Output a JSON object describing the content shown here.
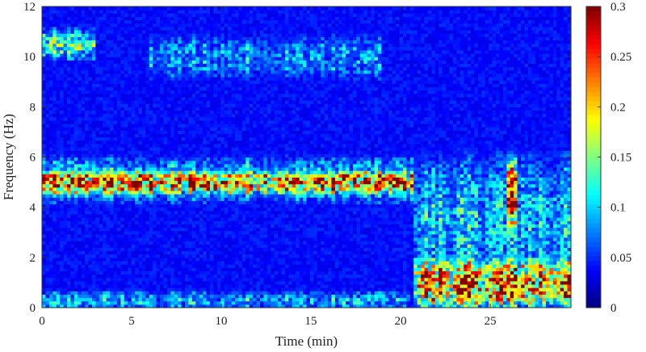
{
  "chart_data": {
    "type": "heatmap",
    "title": "",
    "xlabel": "Time (min)",
    "ylabel": "Frequency (Hz)",
    "xlim": [
      0,
      29.5
    ],
    "ylim": [
      0,
      12
    ],
    "x_ticks": [
      0,
      5,
      10,
      15,
      20,
      25
    ],
    "x_tick_labels": [
      "0",
      "5",
      "10",
      "15",
      "20",
      "25"
    ],
    "y_ticks": [
      0,
      2,
      4,
      6,
      8,
      10,
      12
    ],
    "y_tick_labels": [
      "0",
      "2",
      "4",
      "6",
      "8",
      "10",
      "12"
    ],
    "colorbar": {
      "colormap": "jet",
      "range": [
        0,
        0.3
      ],
      "ticks": [
        0,
        0.05,
        0.1,
        0.15,
        0.2,
        0.25,
        0.3
      ],
      "tick_labels": [
        "0",
        "0.05",
        "0.1",
        "0.15",
        "0.2",
        "0.25",
        "0.3"
      ]
    },
    "background_level": 0.04,
    "regions": [
      {
        "t": [
          0,
          20.8
        ],
        "f_center": 5.0,
        "f_halfwidth": 0.6,
        "level": 0.27
      },
      {
        "t": [
          0,
          20.8
        ],
        "f_center": 5.1,
        "f_halfwidth": 1.2,
        "level": 0.12
      },
      {
        "t": [
          0,
          3
        ],
        "f_center": 10.5,
        "f_halfwidth": 0.8,
        "level": 0.14
      },
      {
        "t": [
          6,
          19
        ],
        "f_center": 10.0,
        "f_halfwidth": 1.2,
        "level": 0.09
      },
      {
        "t": [
          0,
          20.5
        ],
        "f_center": 0.3,
        "f_halfwidth": 0.5,
        "level": 0.1
      },
      {
        "t": [
          20.8,
          29.5
        ],
        "f_center": 1.0,
        "f_halfwidth": 1.3,
        "level": 0.26
      },
      {
        "t": [
          20.8,
          29.5
        ],
        "f_center": 3.5,
        "f_halfwidth": 3.5,
        "level": 0.11
      },
      {
        "t": [
          26,
          26.6
        ],
        "f_center": 4.5,
        "f_halfwidth": 1.8,
        "level": 0.26
      }
    ]
  }
}
